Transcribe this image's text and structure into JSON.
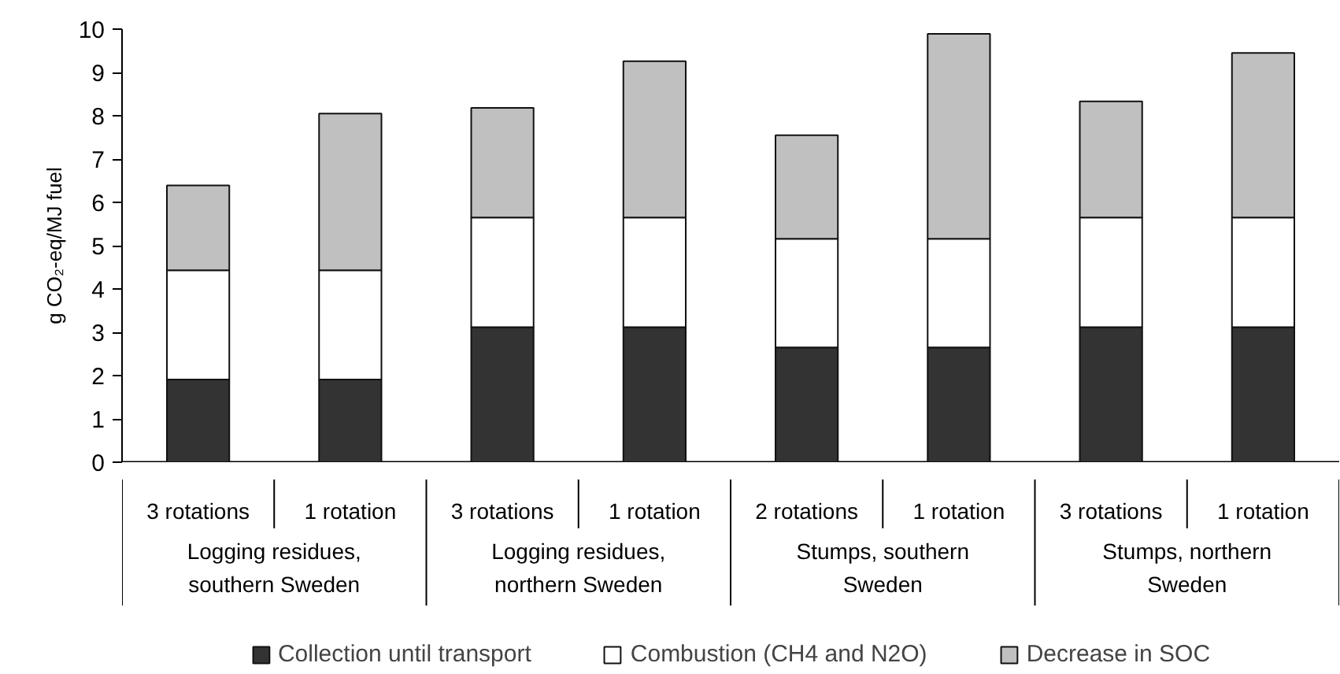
{
  "chart_data": {
    "type": "bar",
    "stacked": true,
    "ylabel": "g CO₂-eq/MJ fuel",
    "categories": [
      "3 rotations",
      "1 rotation",
      "3 rotations",
      "1 rotation",
      "2 rotations",
      "1 rotation",
      "3 rotations",
      "1 rotation"
    ],
    "annotations": [
      "Logging residues,\nsouthern Sweden",
      "Logging residues,\nnorthern Sweden",
      "Stumps, southern\nSweden",
      "Stumps, northern\nSweden"
    ],
    "series": [
      {
        "name": "Collection until transport",
        "color": "#333333",
        "values": [
          1.91,
          1.91,
          3.12,
          3.12,
          2.65,
          2.65,
          3.12,
          3.12
        ]
      },
      {
        "name": "Combustion (CH4 and N2O)",
        "color": "#ffffff",
        "values": [
          2.52,
          2.52,
          2.53,
          2.53,
          2.51,
          2.51,
          2.53,
          2.53
        ]
      },
      {
        "name": "Decrease in SOC",
        "color": "#c0c0c0",
        "values": [
          1.96,
          3.62,
          2.53,
          3.61,
          2.39,
          4.73,
          2.68,
          3.8
        ]
      }
    ],
    "ylim": [
      0,
      10
    ],
    "yticks": [
      0,
      1,
      2,
      3,
      4,
      5,
      6,
      7,
      8,
      9,
      10
    ],
    "grid": false,
    "legend": "bottom"
  }
}
